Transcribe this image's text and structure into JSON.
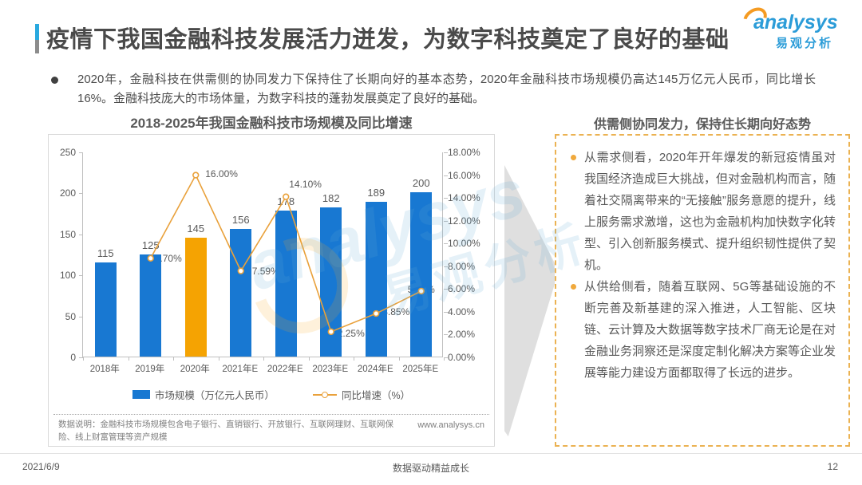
{
  "slide": {
    "title": "疫情下我国金融科技发展活力迸发，为数字科技奠定了良好的基础",
    "summary_bullet": "2020年，金融科技在供需侧的协同发力下保持住了长期向好的基本态势，2020年金融科技市场规模仍高达145万亿元人民币，同比增长16%。金融科技庞大的市场体量，为数字科技的蓬勃发展奠定了良好的基础。",
    "footer": {
      "date": "2021/6/9",
      "slogan": "数据驱动精益成长",
      "page_number": "12"
    }
  },
  "logo": {
    "brand": "analysys",
    "brand_cn": "易观分析"
  },
  "watermark": {
    "text_en": "analysys",
    "text_cn": "易观分析"
  },
  "chart_card": {
    "title": "2018-2025年我国金融科技市场规模及同比增速",
    "note": "数据说明：金融科技市场规模包含电子银行、直销银行、开放银行、互联网理财、互联网保险、线上财富管理等资产规模",
    "source_url": "www.analysys.cn"
  },
  "chart_data": {
    "type": "bar+line combo",
    "title": "2018-2025年我国金融科技市场规模及同比增速",
    "categories": [
      "2018年",
      "2019年",
      "2020年",
      "2021年E",
      "2022年E",
      "2023年E",
      "2024年E",
      "2025年E"
    ],
    "series": [
      {
        "name": "市场规模（万亿元人民币）",
        "type": "bar",
        "axis": "left",
        "values": [
          115,
          125,
          145,
          156,
          178,
          182,
          189,
          200
        ],
        "color": "#1878D2",
        "highlight_index": 2,
        "highlight_color": "#F5A302"
      },
      {
        "name": "同比增速（%）",
        "type": "line",
        "axis": "right",
        "values": [
          null,
          8.7,
          16.0,
          7.59,
          14.1,
          2.25,
          3.85,
          5.82
        ],
        "labels": [
          null,
          "8.70%",
          "16.00%",
          "7.59%",
          "14.10%",
          "2.25%",
          "3.85%",
          "5.82%"
        ],
        "color": "#E9A13B",
        "marker": "open-circle"
      }
    ],
    "left_axis": {
      "min": 0,
      "max": 250,
      "ticks": [
        0,
        50,
        100,
        150,
        200,
        250
      ]
    },
    "right_axis": {
      "min": 0,
      "max": 18,
      "tick_labels": [
        "18.00%",
        "16.00%",
        "14.00%",
        "12.00%",
        "10.00%",
        "8.00%",
        "6.00%",
        "4.00%",
        "2.00%",
        "0.00%"
      ]
    },
    "grid": false,
    "legend_position": "bottom"
  },
  "right_panel": {
    "title": "供需侧协同发力，保持住长期向好态势",
    "bullets": [
      "从需求侧看，2020年开年爆发的新冠疫情虽对我国经济造成巨大挑战，但对金融机构而言，随着社交隔离带来的“无接触”服务意愿的提升，线上服务需求激增，这也为金融机构加快数字化转型、引入创新服务模式、提升组织韧性提供了契机。",
      "从供给侧看，随着互联网、5G等基础设施的不断完善及新基建的深入推进，人工智能、区块链、云计算及大数据等数字技术厂商无论是在对金融业务洞察还是深度定制化解决方案等企业发展等能力建设方面都取得了长远的进步。"
    ]
  },
  "colors": {
    "brand_blue": "#2B9CD8",
    "brand_orange": "#F59B22",
    "bar_blue": "#1878D2",
    "bar_highlight_orange": "#F5A302",
    "line_orange": "#E9A13B",
    "panel_border": "#EBB252",
    "title_text": "#4A4A4A",
    "body_text": "#595959"
  }
}
